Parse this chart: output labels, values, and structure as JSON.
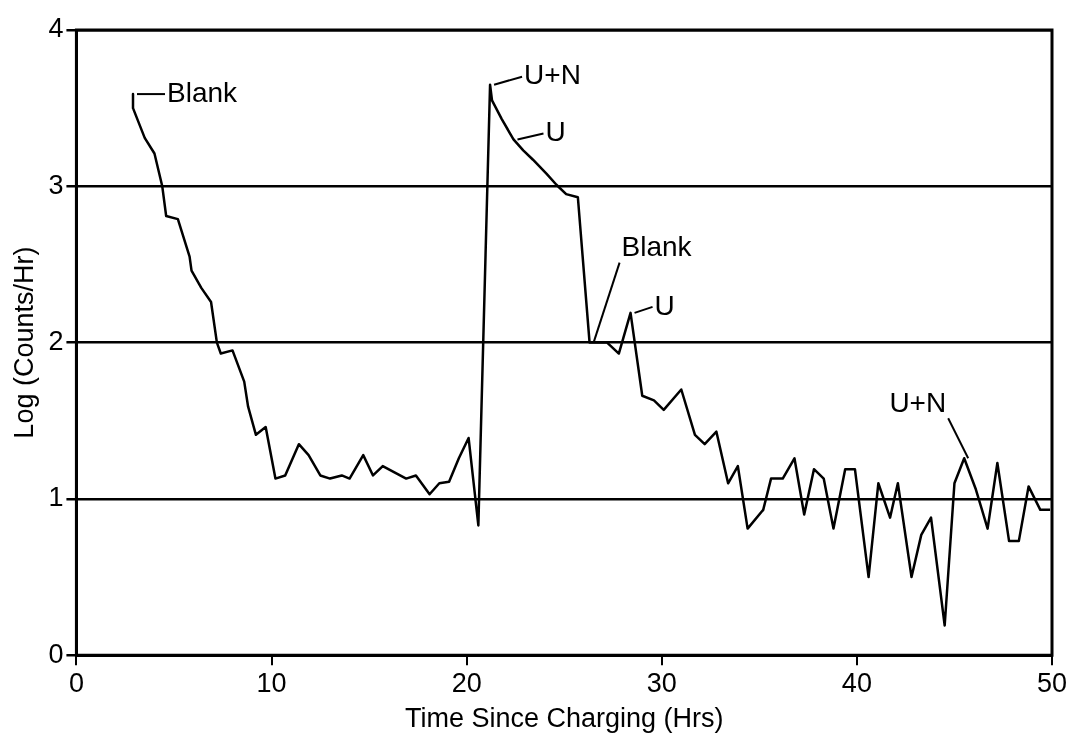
{
  "chart_data": {
    "type": "line",
    "xlabel": "Time Since Charging (Hrs)",
    "ylabel": "Log (Counts/Hr)",
    "xlim": [
      0,
      50
    ],
    "xticks": [
      0,
      10,
      20,
      30,
      40,
      50
    ],
    "ylim": [
      0,
      4
    ],
    "yticks": [
      0,
      1,
      2,
      3,
      4
    ],
    "grid": "y",
    "marker": "none",
    "line_style": "solid",
    "legend": false,
    "series": [
      {
        "color": "#000000",
        "x": [
          2.9,
          2.9,
          3.5,
          4.0,
          4.4,
          4.6,
          5.2,
          5.8,
          5.9,
          6.4,
          6.9,
          7.2,
          7.4,
          8.0,
          8.6,
          8.8,
          9.2,
          9.7,
          10.2,
          10.7,
          11.4,
          11.9,
          12.5,
          13.0,
          13.6,
          14.0,
          14.7,
          15.2,
          15.7,
          16.3,
          16.9,
          17.4,
          18.1,
          18.6,
          19.1,
          19.6,
          20.1,
          20.6,
          21.2,
          21.3,
          21.8,
          22.4,
          22.9,
          23.4,
          24.1,
          24.6,
          25.1,
          25.7,
          26.3,
          26.8,
          27.2,
          27.8,
          28.4,
          29.0,
          29.6,
          30.1,
          31.0,
          31.7,
          32.2,
          32.8,
          33.4,
          33.9,
          34.4,
          35.2,
          35.6,
          36.2,
          36.8,
          37.3,
          37.8,
          38.3,
          38.8,
          39.4,
          39.9,
          40.6,
          41.1,
          41.7,
          42.1,
          42.8,
          43.3,
          43.8,
          44.5,
          45.0,
          45.5,
          46.1,
          46.7,
          47.2,
          47.8,
          48.3,
          48.8,
          49.4,
          49.9
        ],
        "values": [
          3.59,
          3.5,
          3.31,
          3.21,
          3.0,
          2.81,
          2.79,
          2.55,
          2.46,
          2.35,
          2.26,
          2.0,
          1.93,
          1.95,
          1.75,
          1.59,
          1.41,
          1.46,
          1.13,
          1.15,
          1.35,
          1.28,
          1.15,
          1.13,
          1.15,
          1.13,
          1.28,
          1.15,
          1.21,
          1.17,
          1.13,
          1.15,
          1.03,
          1.1,
          1.11,
          1.26,
          1.39,
          0.83,
          3.65,
          3.55,
          3.43,
          3.3,
          3.23,
          3.17,
          3.08,
          3.01,
          2.95,
          2.93,
          2.0,
          2.0,
          2.0,
          1.93,
          2.19,
          1.66,
          1.63,
          1.57,
          1.7,
          1.41,
          1.35,
          1.43,
          1.1,
          1.21,
          0.81,
          0.93,
          1.13,
          1.13,
          1.26,
          0.9,
          1.19,
          1.13,
          0.81,
          1.19,
          1.19,
          0.5,
          1.1,
          0.88,
          1.1,
          0.5,
          0.77,
          0.88,
          0.19,
          1.1,
          1.26,
          1.06,
          0.81,
          1.23,
          0.73,
          0.73,
          1.08,
          0.93,
          0.93
        ]
      }
    ],
    "annotations": [
      {
        "text": "Blank",
        "x": 2.9,
        "y": 3.59
      },
      {
        "text": "U+N",
        "x": 21.2,
        "y": 3.65
      },
      {
        "text": "U",
        "x": 22.4,
        "y": 3.3
      },
      {
        "text": "Blank",
        "x": 26.3,
        "y": 2.0
      },
      {
        "text": "U",
        "x": 28.4,
        "y": 2.19
      },
      {
        "text": "U+N",
        "x": 45.5,
        "y": 1.26
      }
    ]
  }
}
